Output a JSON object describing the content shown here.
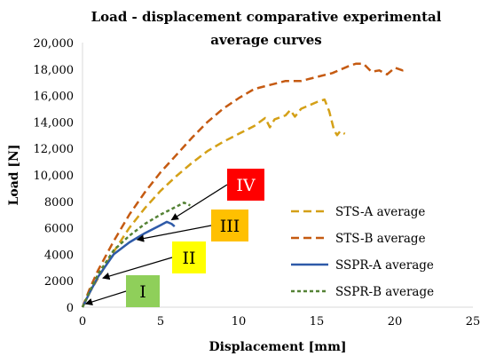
{
  "chart_data": {
    "type": "line",
    "title_lines": [
      "Load - displacement comparative experimental",
      "average curves"
    ],
    "xlabel": "Displacement [mm]",
    "ylabel": "Load [N]",
    "xlim": [
      0,
      25
    ],
    "ylim": [
      0,
      20000
    ],
    "x_ticks": [
      0,
      5,
      10,
      15,
      20,
      25
    ],
    "y_ticks": [
      0,
      2000,
      4000,
      6000,
      8000,
      10000,
      12000,
      14000,
      16000,
      18000,
      20000
    ],
    "x_tick_labels": [
      "0",
      "5",
      "10",
      "15",
      "20",
      "25"
    ],
    "y_tick_labels": [
      "0",
      "2000",
      "4000",
      "6000",
      "8000",
      "10,000",
      "12,000",
      "14,000",
      "16,000",
      "18,000",
      "20,000"
    ],
    "grid": false,
    "legend_position": "right",
    "series": [
      {
        "name": "STS-A average",
        "color": "#d4a017",
        "dash": "dashed",
        "points": [
          [
            0,
            0
          ],
          [
            0.5,
            1200
          ],
          [
            1,
            2200
          ],
          [
            2,
            4200
          ],
          [
            3,
            6000
          ],
          [
            4,
            7500
          ],
          [
            5,
            8800
          ],
          [
            6,
            9900
          ],
          [
            7,
            10900
          ],
          [
            8,
            11800
          ],
          [
            9,
            12500
          ],
          [
            10,
            13100
          ],
          [
            11,
            13700
          ],
          [
            11.7,
            14300
          ],
          [
            12,
            13600
          ],
          [
            12.3,
            14200
          ],
          [
            13,
            14500
          ],
          [
            13.3,
            14900
          ],
          [
            13.6,
            14400
          ],
          [
            14,
            15000
          ],
          [
            15,
            15500
          ],
          [
            15.5,
            15700
          ],
          [
            15.8,
            14800
          ],
          [
            16.1,
            13400
          ],
          [
            16.3,
            13000
          ],
          [
            16.5,
            13300
          ],
          [
            16.8,
            13100
          ]
        ]
      },
      {
        "name": "STS-B average",
        "color": "#c55a11",
        "dash": "dashed",
        "points": [
          [
            0,
            0
          ],
          [
            0.5,
            1500
          ],
          [
            1,
            2800
          ],
          [
            2,
            5000
          ],
          [
            3,
            7000
          ],
          [
            4,
            8700
          ],
          [
            5,
            10200
          ],
          [
            6,
            11500
          ],
          [
            7,
            12800
          ],
          [
            8,
            14000
          ],
          [
            9,
            15000
          ],
          [
            10,
            15800
          ],
          [
            11,
            16500
          ],
          [
            12,
            16800
          ],
          [
            13,
            17100
          ],
          [
            14,
            17100
          ],
          [
            15,
            17400
          ],
          [
            16,
            17700
          ],
          [
            17,
            18200
          ],
          [
            17.5,
            18400
          ],
          [
            18,
            18400
          ],
          [
            18.5,
            17800
          ],
          [
            19,
            17900
          ],
          [
            19.5,
            17600
          ],
          [
            20,
            18100
          ],
          [
            20.5,
            17900
          ],
          [
            20.8,
            18000
          ]
        ]
      },
      {
        "name": "SSPR-A average",
        "color": "#2e5aa8",
        "dash": "solid",
        "points": [
          [
            0,
            0
          ],
          [
            0.5,
            1200
          ],
          [
            1,
            2300
          ],
          [
            2,
            4000
          ],
          [
            3,
            4900
          ],
          [
            4,
            5600
          ],
          [
            5,
            6200
          ],
          [
            5.4,
            6450
          ],
          [
            5.7,
            6300
          ],
          [
            5.9,
            6100
          ]
        ]
      },
      {
        "name": "SSPR-B average",
        "color": "#548235",
        "dash": "dotted",
        "points": [
          [
            0,
            0
          ],
          [
            0.5,
            1300
          ],
          [
            1,
            2500
          ],
          [
            2,
            4300
          ],
          [
            3,
            5400
          ],
          [
            4,
            6300
          ],
          [
            5,
            7000
          ],
          [
            6,
            7600
          ],
          [
            6.5,
            7900
          ],
          [
            6.9,
            7700
          ]
        ]
      }
    ],
    "annotations": [
      {
        "label": "I",
        "box_color": "#8fcf5a",
        "text_color": "#000000",
        "tip": [
          0.2,
          250
        ]
      },
      {
        "label": "II",
        "box_color": "#ffff00",
        "text_color": "#000000",
        "tip": [
          1.3,
          2200
        ]
      },
      {
        "label": "III",
        "box_color": "#ffc000",
        "text_color": "#000000",
        "tip": [
          3.5,
          5100
        ]
      },
      {
        "label": "IV",
        "box_color": "#ff0000",
        "text_color": "#ffffff",
        "tip": [
          5.7,
          6600
        ]
      }
    ]
  }
}
